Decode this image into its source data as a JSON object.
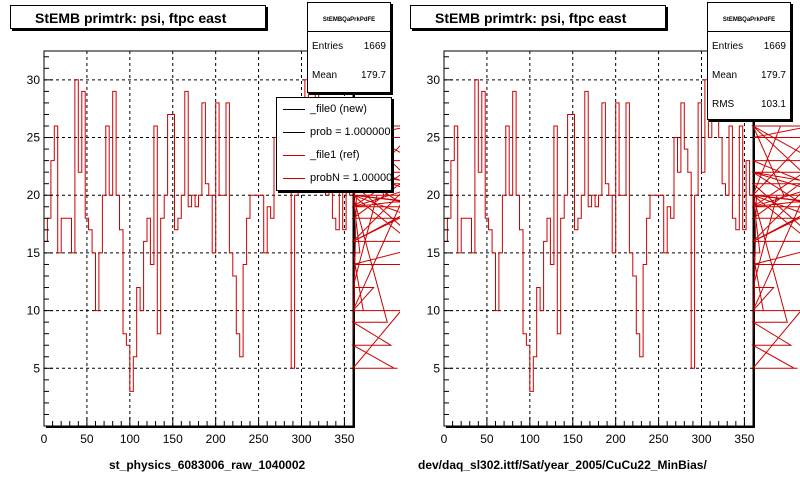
{
  "canvas_stamp": "",
  "panels": [
    {
      "title": "StEMB primtrk: psi, ftpc east",
      "stats": {
        "name": "StEMBQaPrkPdFE",
        "rows": [
          {
            "key": "Entries",
            "value": "1669"
          },
          {
            "key": "Mean",
            "value": "179.7"
          }
        ]
      },
      "legend": [
        {
          "label": "_file0 (new)",
          "color": "#000000"
        },
        {
          "label": "prob = 1.000000",
          "color": "#000000"
        },
        {
          "label": "_file1 (ref)",
          "color": "#cc0000"
        },
        {
          "label": "probN = 1.000000",
          "color": "#cc0000"
        }
      ],
      "file_label": "st_physics_6083006_raw_1040002"
    },
    {
      "title": "StEMB primtrk: psi, ftpc east",
      "stats": {
        "name": "StEMBQaPrkPdFE",
        "rows": [
          {
            "key": "Entries",
            "value": "1669"
          },
          {
            "key": "Mean",
            "value": "179.7"
          },
          {
            "key": "RMS",
            "value": "103.1"
          }
        ]
      },
      "legend": [],
      "file_label": "dev/daq_sl302.ittf/Sat/year_2005/CuCu22_MinBias/"
    }
  ],
  "chart_data": [
    {
      "type": "line",
      "title": "StEMB primtrk: psi, ftpc east",
      "xlabel": "",
      "ylabel": "",
      "xlim": [
        0,
        360
      ],
      "ylim": [
        0,
        32.5
      ],
      "xticks": [
        0,
        50,
        100,
        150,
        200,
        250,
        300,
        350
      ],
      "yticks": [
        5,
        10,
        15,
        20,
        25,
        30
      ],
      "grid": true,
      "style": "step histogram",
      "bin_width": 4,
      "series": [
        {
          "name": "_file1 (ref)",
          "color": "#cc0000",
          "values": [
            16,
            18,
            23,
            26,
            15,
            18,
            18,
            18,
            15,
            30,
            22,
            29,
            18,
            17,
            15,
            10,
            15,
            20,
            26,
            20,
            29,
            20,
            17,
            8,
            7,
            3,
            6,
            12,
            10,
            16,
            18,
            14,
            26,
            8,
            18,
            20,
            27,
            27,
            17,
            18,
            20,
            29,
            19,
            20,
            19,
            20,
            28,
            21,
            20,
            15,
            28,
            20,
            20,
            28,
            15,
            13,
            8,
            6,
            14,
            18,
            20,
            20,
            20,
            20,
            15,
            19,
            18,
            25,
            22,
            28,
            24,
            22,
            5,
            20,
            28,
            22,
            30,
            25,
            28,
            31,
            25,
            21,
            20,
            26,
            18,
            17,
            26,
            17,
            23,
            20,
            7,
            20,
            15,
            10,
            10,
            10,
            12,
            20,
            26,
            20,
            9,
            7,
            5,
            5,
            10,
            20,
            25,
            26,
            21,
            16,
            22,
            18,
            18,
            23,
            20,
            14,
            16,
            20,
            19,
            20,
            20,
            19,
            22,
            19,
            19,
            26,
            20,
            16,
            22,
            20
          ]
        }
      ]
    },
    {
      "type": "line",
      "title": "StEMB primtrk: psi, ftpc east",
      "xlabel": "",
      "ylabel": "",
      "xlim": [
        0,
        360
      ],
      "ylim": [
        0,
        32.5
      ],
      "xticks": [
        0,
        50,
        100,
        150,
        200,
        250,
        300,
        350
      ],
      "yticks": [
        5,
        10,
        15,
        20,
        25,
        30
      ],
      "grid": true,
      "style": "step histogram",
      "bin_width": 4,
      "series": [
        {
          "name": "_file1 (ref)",
          "color": "#cc0000",
          "values": [
            16,
            18,
            23,
            26,
            15,
            18,
            18,
            18,
            15,
            30,
            22,
            29,
            18,
            17,
            15,
            10,
            15,
            20,
            26,
            20,
            29,
            20,
            17,
            8,
            7,
            3,
            6,
            12,
            10,
            16,
            18,
            14,
            26,
            8,
            18,
            20,
            27,
            27,
            17,
            18,
            20,
            29,
            19,
            20,
            19,
            20,
            28,
            21,
            20,
            15,
            28,
            20,
            20,
            28,
            15,
            13,
            8,
            6,
            14,
            18,
            20,
            20,
            20,
            20,
            15,
            19,
            18,
            25,
            22,
            28,
            24,
            22,
            5,
            20,
            28,
            22,
            30,
            25,
            28,
            31,
            25,
            21,
            20,
            26,
            18,
            17,
            26,
            17,
            23,
            20,
            7,
            20,
            15,
            10,
            10,
            10,
            12,
            20,
            26,
            20,
            9,
            7,
            5,
            5,
            10,
            20,
            25,
            26,
            21,
            16,
            22,
            18,
            18,
            23,
            20,
            14,
            16,
            20,
            19,
            20,
            20,
            19,
            22,
            19,
            19,
            26,
            20,
            16,
            22,
            20
          ]
        }
      ]
    }
  ]
}
